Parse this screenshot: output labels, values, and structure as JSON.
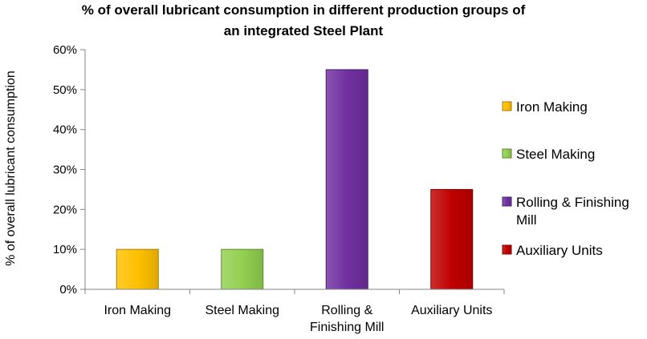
{
  "chart_data": {
    "type": "bar",
    "title_lines": [
      "% of overall lubricant consumption in different production groups of",
      "an integrated Steel Plant"
    ],
    "xlabel": "",
    "ylabel": "% of overall lubricant consumption",
    "ylim": [
      0,
      60
    ],
    "y_ticks": [
      "0%",
      "10%",
      "20%",
      "30%",
      "40%",
      "50%",
      "60%"
    ],
    "grid": false,
    "legend_position": "right",
    "categories": [
      {
        "label": "Iron Making",
        "lines": [
          "Iron Making"
        ]
      },
      {
        "label": "Steel Making",
        "lines": [
          "Steel Making"
        ]
      },
      {
        "label": "Rolling & Finishing Mill",
        "lines": [
          "Rolling &",
          "Finishing Mill"
        ]
      },
      {
        "label": "Auxiliary Units",
        "lines": [
          "Auxiliary Units"
        ]
      }
    ],
    "values": [
      10,
      10,
      55,
      25
    ],
    "colors": [
      "#FFC000",
      "#92D050",
      "#7030A0",
      "#C00000"
    ],
    "legend": [
      {
        "lines": [
          "Iron Making"
        ],
        "color": "#FFC000"
      },
      {
        "lines": [
          "Steel Making"
        ],
        "color": "#92D050"
      },
      {
        "lines": [
          "Rolling & Finishing",
          "Mill"
        ],
        "color": "#7030A0"
      },
      {
        "lines": [
          "Auxiliary Units"
        ],
        "color": "#C00000"
      }
    ]
  }
}
